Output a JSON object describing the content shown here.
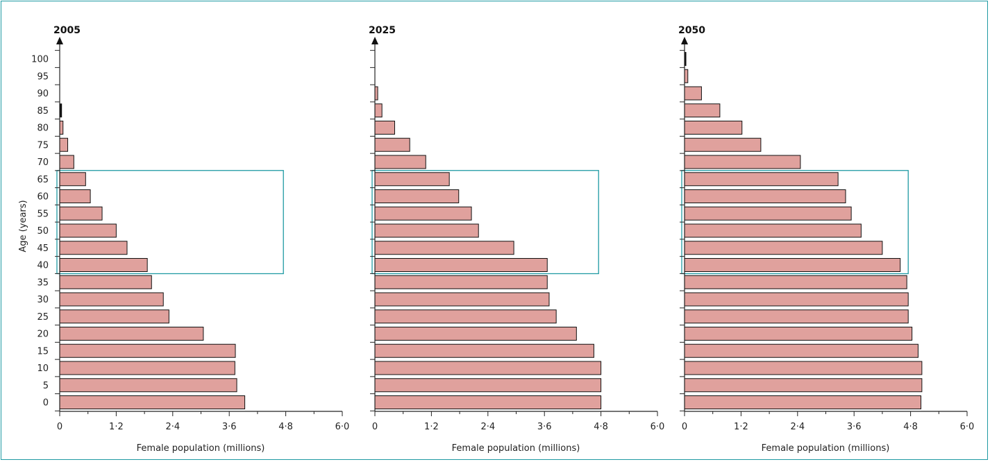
{
  "chart_data": {
    "type": "bar",
    "orientation": "horizontal",
    "ylabel": "Age (years)",
    "age_ticks": [
      "0",
      "5",
      "10",
      "15",
      "20",
      "25",
      "30",
      "35",
      "40",
      "45",
      "50",
      "55",
      "60",
      "65",
      "70",
      "75",
      "80",
      "85",
      "90",
      "95",
      "100"
    ],
    "x_ticks": [
      "0",
      "1·2",
      "2·4",
      "3·6",
      "4·8",
      "6·0"
    ],
    "xlim": [
      0,
      6.0
    ],
    "highlight_age_range": [
      40,
      65
    ],
    "colors": {
      "bar": "#e0a19d",
      "highlight": "#1f9aa3",
      "axis": "#222222"
    },
    "panels": [
      {
        "title": "2005",
        "xlabel": "Female population (millions)",
        "ages": [
          0,
          5,
          10,
          15,
          20,
          25,
          30,
          35,
          40,
          45,
          50,
          55,
          60,
          65,
          70,
          75,
          80,
          85,
          90,
          95,
          100
        ],
        "values": [
          3.93,
          3.76,
          3.72,
          3.73,
          3.05,
          2.32,
          2.2,
          1.95,
          1.86,
          1.43,
          1.2,
          0.9,
          0.65,
          0.55,
          0.3,
          0.17,
          0.07,
          0.04,
          0,
          0,
          0
        ]
      },
      {
        "title": "2025",
        "xlabel": "Female population (millions)",
        "ages": [
          0,
          5,
          10,
          15,
          20,
          25,
          30,
          35,
          40,
          45,
          50,
          55,
          60,
          65,
          70,
          75,
          80,
          85,
          90,
          95,
          100
        ],
        "values": [
          4.8,
          4.8,
          4.8,
          4.65,
          4.28,
          3.85,
          3.7,
          3.66,
          3.66,
          2.95,
          2.2,
          2.05,
          1.78,
          1.58,
          1.08,
          0.74,
          0.42,
          0.15,
          0.06,
          0,
          0
        ]
      },
      {
        "title": "2050",
        "xlabel": "Female population (millions)",
        "ages": [
          0,
          5,
          10,
          15,
          20,
          25,
          30,
          35,
          40,
          45,
          50,
          55,
          60,
          65,
          70,
          75,
          80,
          85,
          90,
          95,
          100
        ],
        "values": [
          5.02,
          5.04,
          5.04,
          4.96,
          4.83,
          4.75,
          4.75,
          4.72,
          4.58,
          4.2,
          3.75,
          3.54,
          3.42,
          3.26,
          2.46,
          1.62,
          1.22,
          0.75,
          0.36,
          0.07,
          0.03
        ]
      }
    ]
  }
}
